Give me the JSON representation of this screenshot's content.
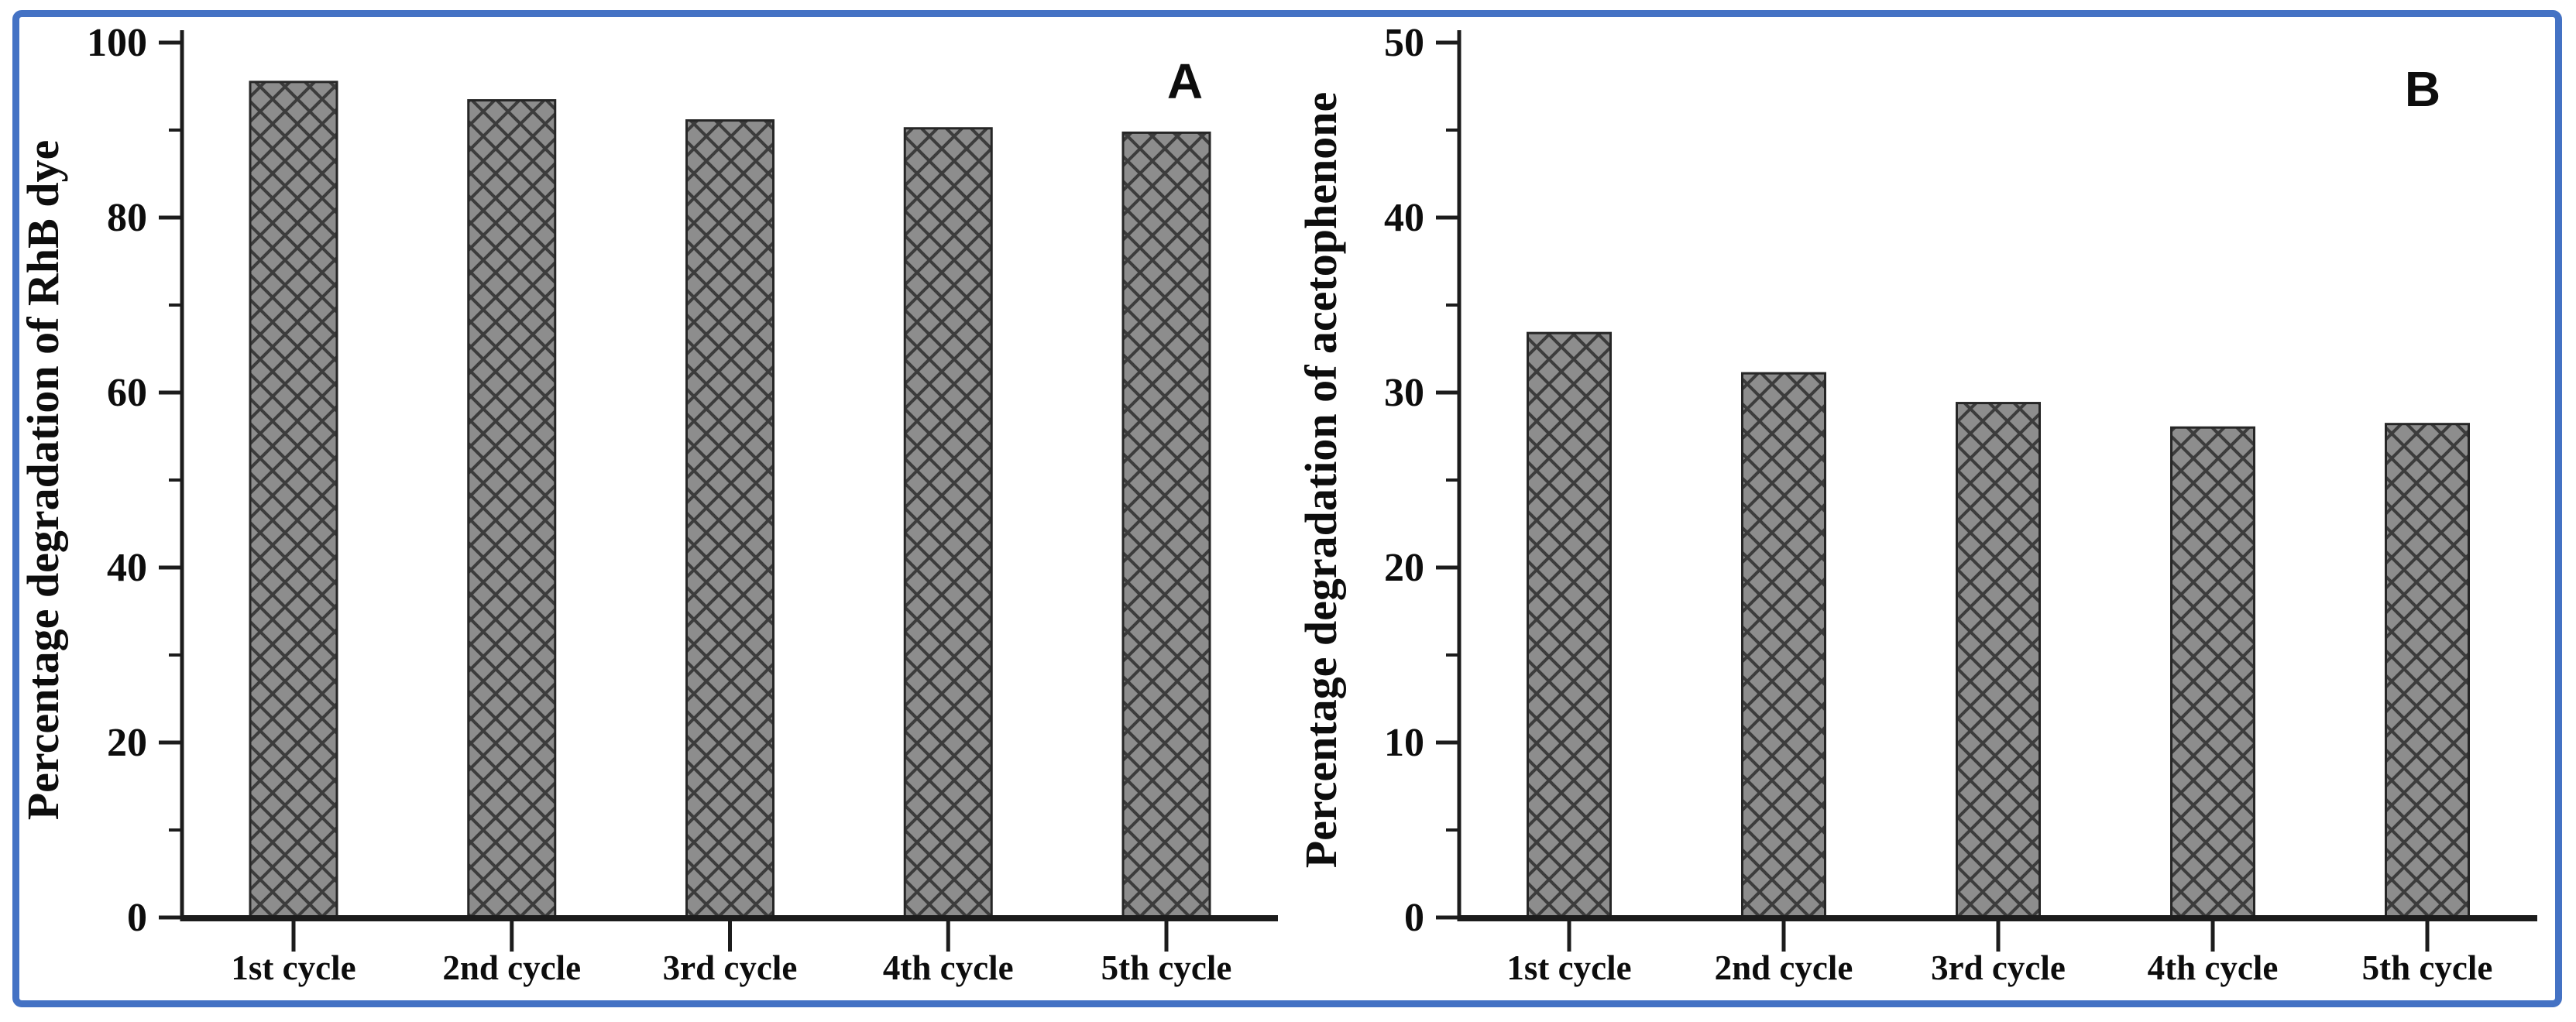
{
  "figure": {
    "frame_color": "#4472c4",
    "background_color": "#ffffff",
    "axis_color": "#1c1c1c",
    "text_color": "#0d0d0d",
    "panels": [
      "A",
      "B"
    ]
  },
  "chart_data": [
    {
      "type": "bar",
      "panel_label": "A",
      "title": "",
      "xlabel": "",
      "ylabel": "Percentage degradation of RhB dye",
      "categories": [
        "1st cycle",
        "2nd cycle",
        "3rd cycle",
        "4th cycle",
        "5th cycle"
      ],
      "values": [
        95.5,
        93.4,
        91.1,
        90.2,
        89.7
      ],
      "ylim": [
        0,
        100
      ],
      "yticks": [
        0,
        20,
        40,
        60,
        80,
        100
      ],
      "minor_tick_interval": 10,
      "grid": false,
      "legend": "none",
      "bar_fill_color": "#8d8d8d",
      "bar_hatch_color": "#3c3c3c",
      "bar_edge_color": "#262626",
      "bar_hatch_pattern": "diagonal-crosshatch"
    },
    {
      "type": "bar",
      "panel_label": "B",
      "title": "",
      "xlabel": "",
      "ylabel": "Percentage degradation of acetophenone",
      "categories": [
        "1st cycle",
        "2nd cycle",
        "3rd cycle",
        "4th cycle",
        "5th cycle"
      ],
      "values": [
        33.4,
        31.1,
        29.4,
        28.0,
        28.2
      ],
      "ylim": [
        0,
        50
      ],
      "yticks": [
        0,
        10,
        20,
        30,
        40,
        50
      ],
      "minor_tick_interval": 5,
      "grid": false,
      "legend": "none",
      "bar_fill_color": "#8d8d8d",
      "bar_hatch_color": "#3c3c3c",
      "bar_edge_color": "#262626",
      "bar_hatch_pattern": "diagonal-crosshatch"
    }
  ]
}
